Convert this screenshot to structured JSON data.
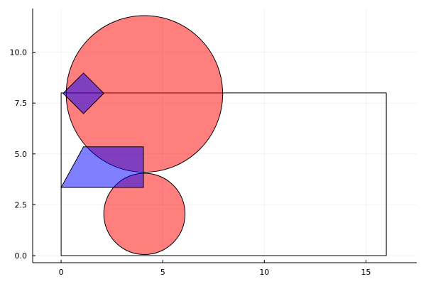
{
  "chart_data": {
    "type": "shapes",
    "title": "",
    "xlabel": "",
    "ylabel": "",
    "xlim": [
      -1.4,
      17.5
    ],
    "ylim": [
      -0.35,
      12.15
    ],
    "grid": true,
    "legend": "none",
    "x_ticks": [
      {
        "value": 0,
        "label": "0"
      },
      {
        "value": 5,
        "label": "5"
      },
      {
        "value": 10,
        "label": "10"
      },
      {
        "value": 15,
        "label": "15"
      }
    ],
    "y_ticks": [
      {
        "value": 0,
        "label": "0.0"
      },
      {
        "value": 2.5,
        "label": "2.5"
      },
      {
        "value": 5,
        "label": "5.0"
      },
      {
        "value": 7.5,
        "label": "7.5"
      },
      {
        "value": 10,
        "label": "10.0"
      }
    ],
    "shapes": [
      {
        "name": "rectangle",
        "kind": "polygon",
        "fill": "none",
        "fill_opacity": 0,
        "points": [
          [
            0,
            0
          ],
          [
            16,
            0
          ],
          [
            16,
            8
          ],
          [
            0,
            8
          ]
        ]
      },
      {
        "name": "large-circle",
        "kind": "circle",
        "fill": "#ff0000",
        "fill_opacity": 0.5,
        "center": [
          4.1,
          7.95
        ],
        "radius": 3.85
      },
      {
        "name": "small-circle",
        "kind": "circle",
        "fill": "#ff0000",
        "fill_opacity": 0.5,
        "center": [
          4.1,
          2.05
        ],
        "radius": 2.0
      },
      {
        "name": "trapezoid",
        "kind": "polygon",
        "fill": "#0000ff",
        "fill_opacity": 0.5,
        "points": [
          [
            0,
            3.35
          ],
          [
            1.1,
            5.35
          ],
          [
            4.05,
            5.35
          ],
          [
            4.05,
            3.35
          ]
        ]
      },
      {
        "name": "diamond",
        "kind": "polygon",
        "fill": "#0000ff",
        "fill_opacity": 0.5,
        "points": [
          [
            0.1,
            7.98
          ],
          [
            1.1,
            8.98
          ],
          [
            2.1,
            7.98
          ],
          [
            1.1,
            6.98
          ]
        ]
      }
    ]
  }
}
